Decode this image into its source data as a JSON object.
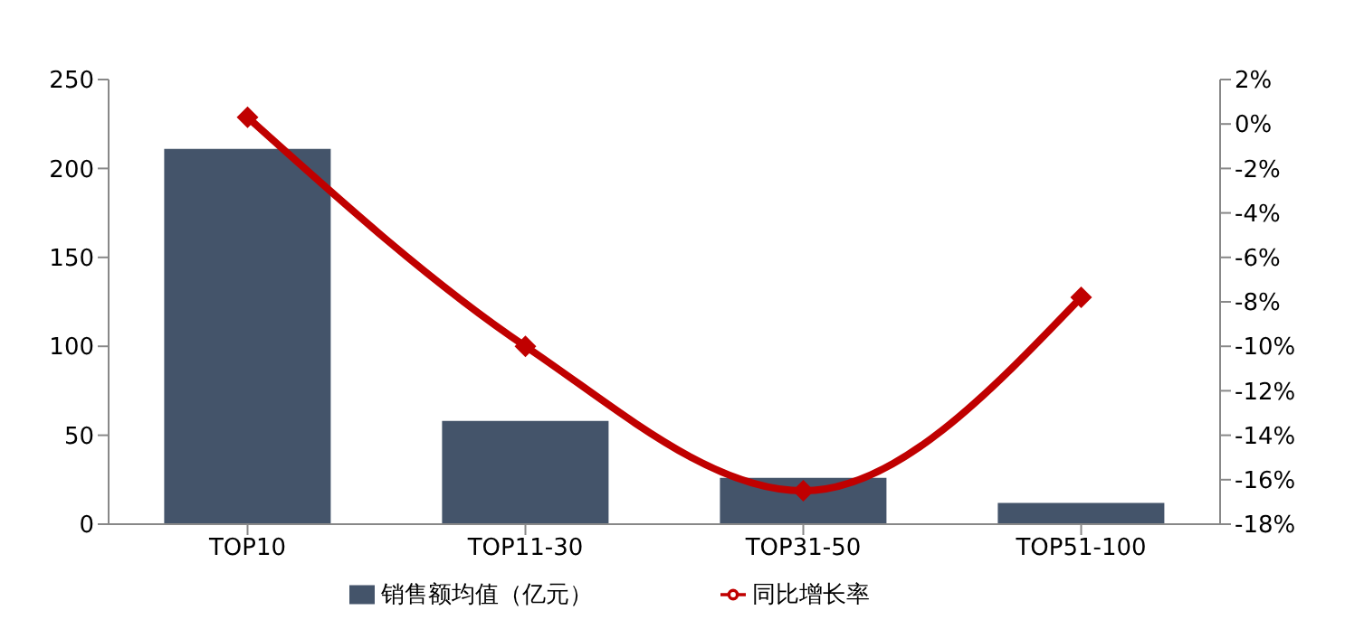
{
  "chart_data": {
    "type": "bar",
    "categories": [
      "TOP10",
      "TOP11-30",
      "TOP31-50",
      "TOP51-100"
    ],
    "series": [
      {
        "name": "销售额均值（亿元）",
        "color": "#44546a",
        "values": [
          211,
          58,
          26,
          12
        ]
      },
      {
        "name": "同比增长率",
        "type": "line",
        "axis": "y2",
        "color": "#c00000",
        "values": [
          0.3,
          -10.0,
          -16.5,
          -7.8
        ]
      }
    ],
    "ylim": [
      0,
      250
    ],
    "yticks": [
      0,
      50,
      100,
      150,
      200,
      250
    ],
    "y2lim": [
      -18,
      2
    ],
    "y2ticks": [
      {
        "value": 2,
        "label": "2%"
      },
      {
        "value": 0,
        "label": "0%"
      },
      {
        "value": -2,
        "label": "-2%"
      },
      {
        "value": -4,
        "label": "-4%"
      },
      {
        "value": -6,
        "label": "-6%"
      },
      {
        "value": -8,
        "label": "-8%"
      },
      {
        "value": -10,
        "label": "-10%"
      },
      {
        "value": -12,
        "label": "-12%"
      },
      {
        "value": -14,
        "label": "-14%"
      },
      {
        "value": -16,
        "label": "-16%"
      },
      {
        "value": -18,
        "label": "-18%"
      }
    ],
    "grid": false,
    "legend": "bottom",
    "marker": "diamond",
    "line_style": "solid"
  }
}
